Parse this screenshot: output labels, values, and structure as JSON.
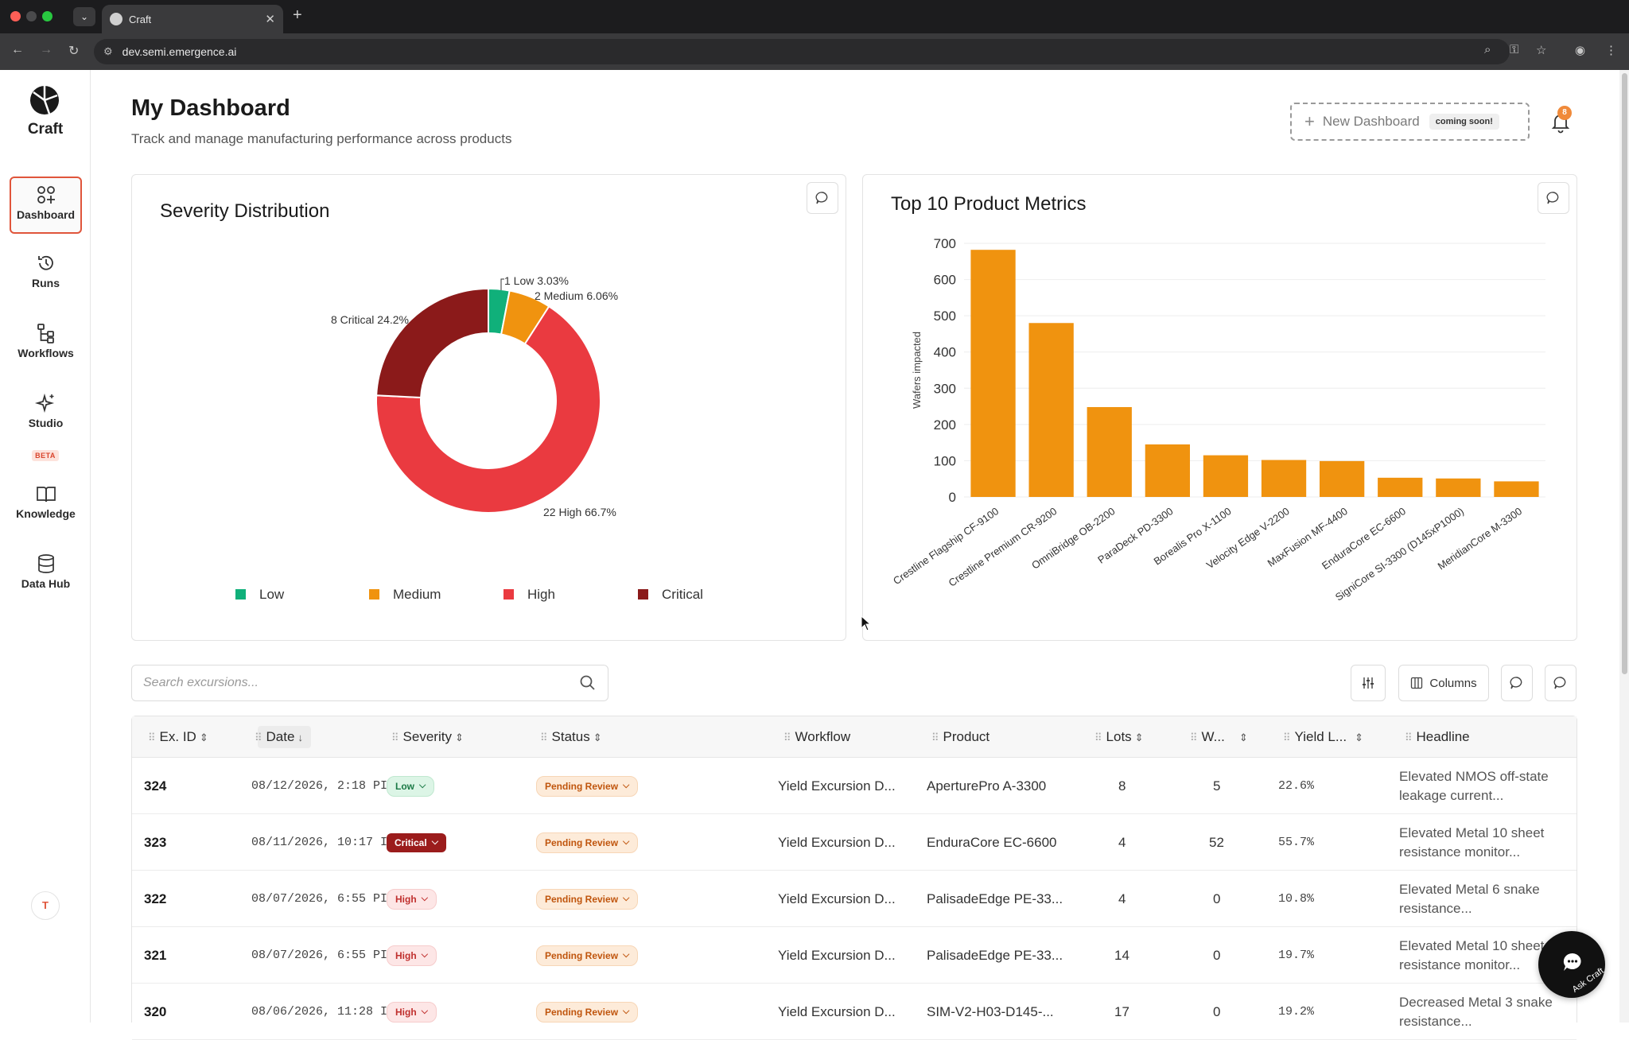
{
  "browser": {
    "tab_title": "Craft",
    "url": "dev.semi.emergence.ai"
  },
  "sidebar": {
    "brand": "Craft",
    "items": [
      {
        "label": "Dashboard"
      },
      {
        "label": "Runs"
      },
      {
        "label": "Workflows"
      },
      {
        "label": "Studio"
      },
      {
        "label": "Knowledge"
      },
      {
        "label": "Data Hub"
      }
    ],
    "studio_badge": "BETA",
    "avatar_initial": "T"
  },
  "header": {
    "title": "My Dashboard",
    "subtitle": "Track and manage manufacturing performance across products",
    "new_dashboard_label": "New Dashboard",
    "coming_soon": "coming soon!",
    "notification_count": "8"
  },
  "chart_data": [
    {
      "type": "pie",
      "title": "Severity Distribution",
      "labels": [
        "Low",
        "Medium",
        "High",
        "Critical"
      ],
      "values": [
        1,
        2,
        22,
        8
      ],
      "percents": [
        "3.03%",
        "6.06%",
        "66.7%",
        "24.2%"
      ],
      "slice_labels": [
        "1 Low 3.03%",
        "2 Medium 6.06%",
        "22 High 66.7%",
        "8 Critical 24.2%"
      ],
      "colors": [
        "#10b07a",
        "#f0930f",
        "#ea3a40",
        "#8b1a1a"
      ],
      "legend": "bottom"
    },
    {
      "type": "bar",
      "title": "Top 10 Product Metrics",
      "ylabel": "Wafers impacted",
      "ylim": [
        0,
        700
      ],
      "yticks": [
        0,
        100,
        200,
        300,
        400,
        500,
        600,
        700
      ],
      "categories": [
        "Crestline Flagship CF-9100",
        "Crestline Premium CR-9200",
        "OmniBridge OB-2200",
        "ParaDeck PD-3300",
        "Borealis Pro X-1100",
        "Velocity Edge V-2200",
        "MaxFusion MF-4400",
        "EnduraCore EC-6600",
        "SigniCore SI-3300 (D145xP1000)",
        "MeridianCore M-3300"
      ],
      "values": [
        682,
        480,
        248,
        145,
        115,
        102,
        99,
        53,
        51,
        43
      ],
      "color": "#f0930f",
      "grid": true
    }
  ],
  "toolbar": {
    "search_placeholder": "Search excursions...",
    "columns_label": "Columns"
  },
  "table": {
    "headers": [
      "Ex. ID",
      "Date",
      "Severity",
      "Status",
      "Workflow",
      "Product",
      "Lots",
      "W...",
      "Yield L...",
      "Headline"
    ],
    "rows": [
      {
        "id": "324",
        "date": "08/12/2026, 2:18 PI",
        "severity": "Low",
        "status": "Pending Review",
        "workflow": "Yield Excursion D...",
        "product": "AperturePro A-3300",
        "lots": "8",
        "wafers": "5",
        "yield": "22.6%",
        "headline": "Elevated NMOS off-state leakage current..."
      },
      {
        "id": "323",
        "date": "08/11/2026, 10:17 I",
        "severity": "Critical",
        "status": "Pending Review",
        "workflow": "Yield Excursion D...",
        "product": "EnduraCore EC-6600",
        "lots": "4",
        "wafers": "52",
        "yield": "55.7%",
        "headline": "Elevated Metal 10 sheet resistance monitor..."
      },
      {
        "id": "322",
        "date": "08/07/2026, 6:55 PI",
        "severity": "High",
        "status": "Pending Review",
        "workflow": "Yield Excursion D...",
        "product": "PalisadeEdge PE-33...",
        "lots": "4",
        "wafers": "0",
        "yield": "10.8%",
        "headline": "Elevated Metal 6 snake resistance..."
      },
      {
        "id": "321",
        "date": "08/07/2026, 6:55 PI",
        "severity": "High",
        "status": "Pending Review",
        "workflow": "Yield Excursion D...",
        "product": "PalisadeEdge PE-33...",
        "lots": "14",
        "wafers": "0",
        "yield": "19.7%",
        "headline": "Elevated Metal 10 sheet resistance monitor..."
      },
      {
        "id": "320",
        "date": "08/06/2026, 11:28 I",
        "severity": "High",
        "status": "Pending Review",
        "workflow": "Yield Excursion D...",
        "product": "SIM-V2-H03-D145-...",
        "lots": "17",
        "wafers": "0",
        "yield": "19.2%",
        "headline": "Decreased Metal 3 snake resistance..."
      }
    ]
  },
  "ask_craft_label": "Ask Craft"
}
